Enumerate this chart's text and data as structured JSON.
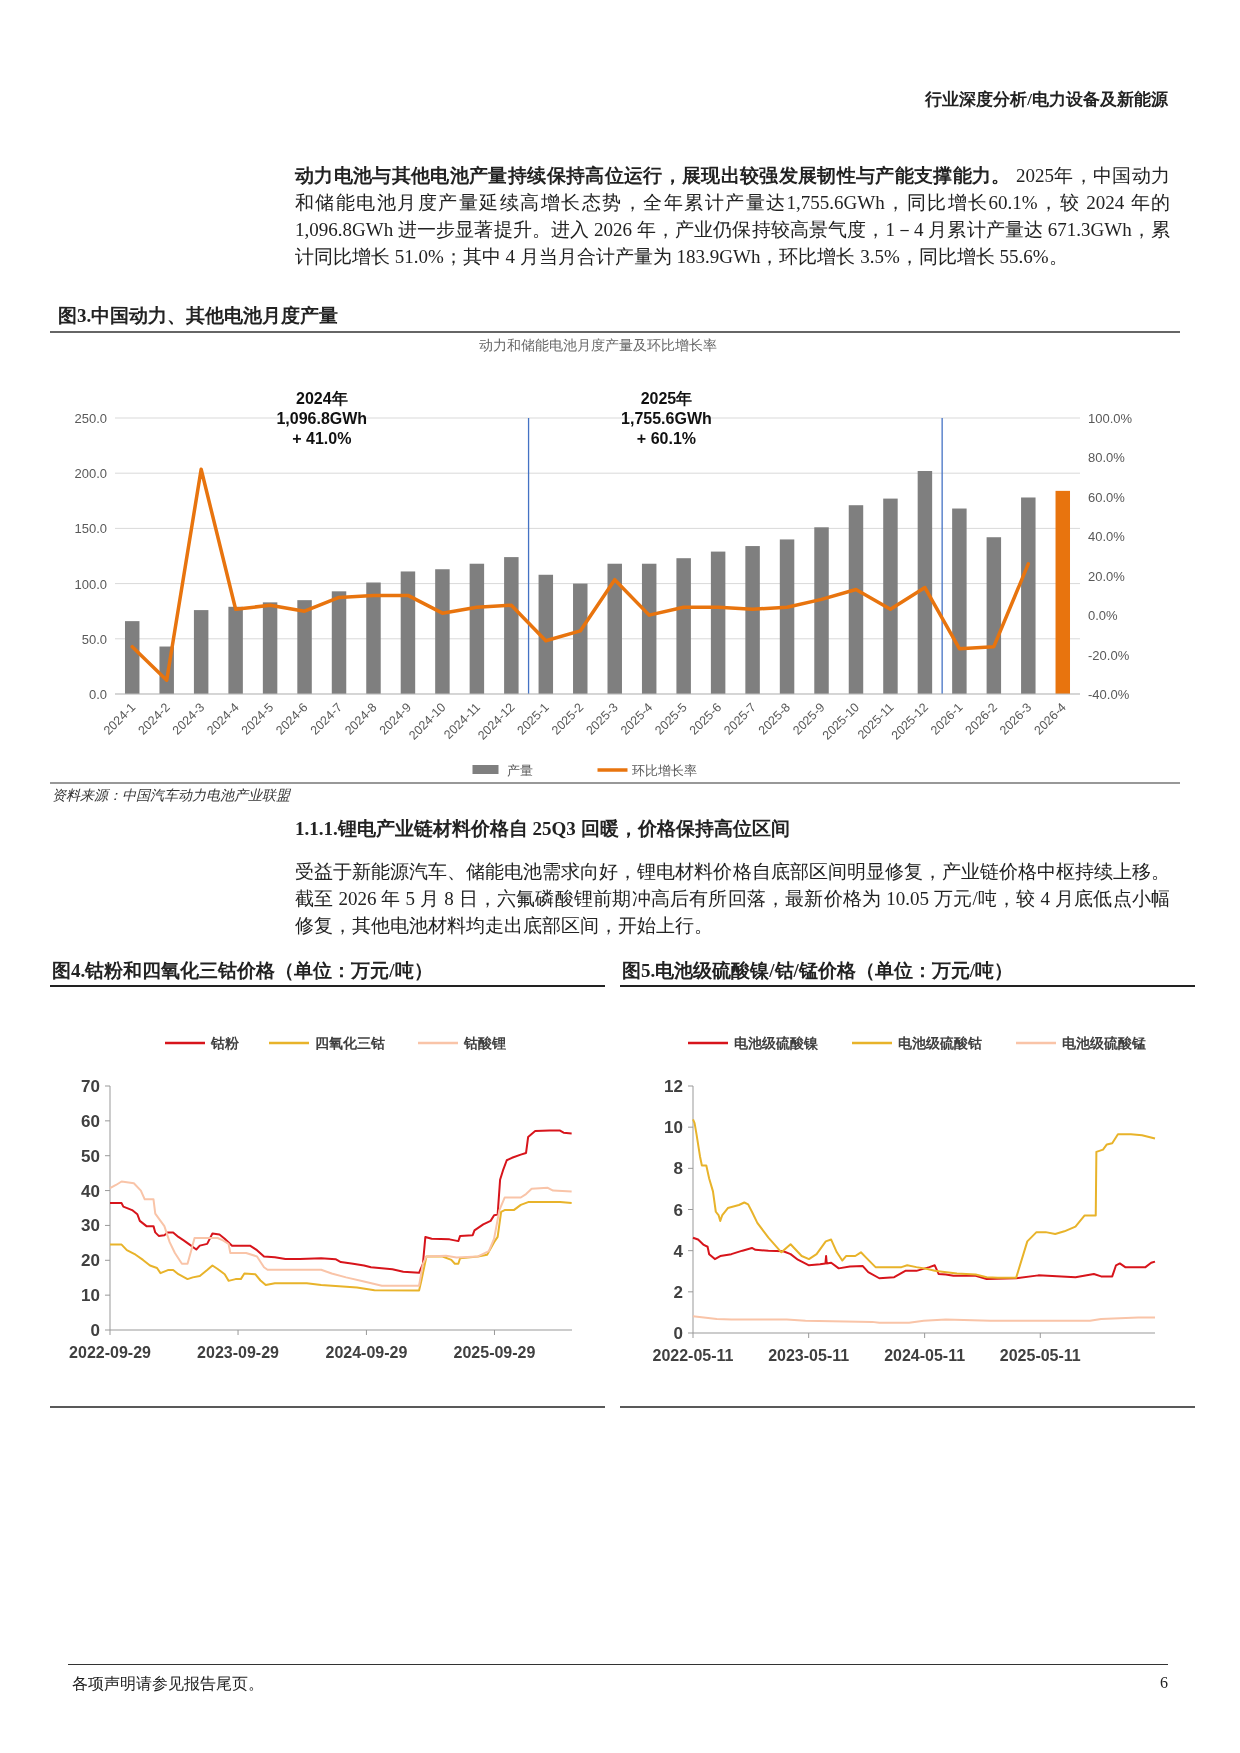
{
  "chart_data": [
    {
      "type": "other",
      "annotations": [
        "行业深度分析/电力设备及新能源",
        "**动力电池与其他电池产量持续保持高位运行，展现出较强发展韧性与产能支撑能力。** 2025年，中国动力和储能电池月度产量延续高增长态势，全年累计产量达1,755.6GWh，同比增长60.1%，较 2024 年的 1,096.8GWh 进一步显著提升。进入 2026 年，产业仍保持较高景气度，1－4 月累计产量达 671.3GWh，累计同比增长 51.0%；其中 4 月当月合计产量为 183.9GWh，环比增长 3.5%，同比增长 55.6%。"
      ]
    },
    {
      "type": "bar",
      "title": "图3.中国动力、其他电池月度产量",
      "subtitle": "动力和储能电池月度产量及环比增长率",
      "categories": [
        "2024-1",
        "2024-2",
        "2024-3",
        "2024-4",
        "2024-5",
        "2024-6",
        "2024-7",
        "2024-8",
        "2024-9",
        "2024-10",
        "2024-11",
        "2024-12",
        "2025-1",
        "2025-2",
        "2025-3",
        "2025-4",
        "2025-5",
        "2025-6",
        "2025-7",
        "2025-8",
        "2025-9",
        "2025-10",
        "2025-11",
        "2025-12",
        "2026-1",
        "2026-2",
        "2026-3",
        "2026-4"
      ],
      "series": [
        {
          "name": "产量",
          "type": "bar",
          "color": "#7f7f7f",
          "colors": [
            "#7f7f7f",
            "#7f7f7f",
            "#7f7f7f",
            "#7f7f7f",
            "#7f7f7f",
            "#7f7f7f",
            "#7f7f7f",
            "#7f7f7f",
            "#7f7f7f",
            "#7f7f7f",
            "#7f7f7f",
            "#7f7f7f",
            "#7f7f7f",
            "#7f7f7f",
            "#7f7f7f",
            "#7f7f7f",
            "#7f7f7f",
            "#7f7f7f",
            "#7f7f7f",
            "#7f7f7f",
            "#7f7f7f",
            "#7f7f7f",
            "#7f7f7f",
            "#7f7f7f",
            "#7f7f7f",
            "#7f7f7f",
            "#7f7f7f",
            "#e8740e"
          ],
          "values": [
            66,
            43,
            76,
            79,
            83,
            85,
            93,
            101,
            111,
            113,
            118,
            124,
            108,
            100,
            118,
            118,
            123,
            129,
            134,
            140,
            151,
            171,
            177,
            202,
            168,
            142,
            178,
            184
          ]
        },
        {
          "name": "环比增长率",
          "type": "line",
          "axis": "y2",
          "color": "#e8740e",
          "values": [
            -16,
            -33,
            74,
            3,
            5,
            2,
            9,
            10,
            10,
            1,
            4,
            5,
            -13,
            -8,
            18,
            0,
            4,
            4,
            3,
            4,
            8,
            13,
            3,
            14,
            -17,
            -16,
            26,
            null
          ]
        }
      ],
      "ylim": [
        0,
        250
      ],
      "yticks": [
        {
          "value": 0,
          "label": "0.0"
        },
        {
          "value": 50,
          "label": "50.0"
        },
        {
          "value": 100,
          "label": "100.0"
        },
        {
          "value": 150,
          "label": "150.0"
        },
        {
          "value": 200,
          "label": "200.0"
        },
        {
          "value": 250,
          "label": "250.0"
        }
      ],
      "y2lim": [
        -40,
        100
      ],
      "y2ticks": [
        {
          "value": -40,
          "label": "-40.0%"
        },
        {
          "value": -20,
          "label": "-20.0%"
        },
        {
          "value": 0,
          "label": "0.0%"
        },
        {
          "value": 20,
          "label": "20.0%"
        },
        {
          "value": 40,
          "label": "40.0%"
        },
        {
          "value": 60,
          "label": "60.0%"
        },
        {
          "value": 80,
          "label": "80.0%"
        },
        {
          "value": 100,
          "label": "100.0%"
        }
      ],
      "grid": "y",
      "legend": "bottom",
      "annotations": [
        "2024年\n1,096.8GWh\n+ 41.0%",
        "2025年\n1,755.6GWh\n+ 60.1%",
        "资料来源：中国汽车动力电池产业联盟"
      ]
    },
    {
      "type": "other",
      "title": "1.1.1.锂电产业链材料价格自 25Q3 回暖，价格保持高位区间",
      "annotations": [
        "受益于新能源汽车、储能电池需求向好，锂电材料价格自底部区间明显修复，产业链价格中枢持续上移。截至 2026 年 5 月 8 日，六氟磷酸锂前期冲高后有所回落，最新价格为 10.05 万元/吨，较 4 月底低点小幅修复，其他电池材料均走出底部区间，开始上行。"
      ]
    },
    {
      "type": "line",
      "title": "图4.钴粉和四氧化三钴价格（单位：万元/吨）",
      "legend": "top",
      "xlim": [
        "2022-09-29",
        "2026-05-08"
      ],
      "xticks": [
        "2022-09-29",
        "2023-09-29",
        "2024-09-29",
        "2025-09-29"
      ],
      "ylim": [
        0,
        70
      ],
      "yticks": [
        0,
        10,
        20,
        30,
        40,
        50,
        60,
        70
      ],
      "series": [
        {
          "name": "钴粉",
          "color": "#d7141b",
          "x": [
            "2022-09-29",
            "2022-11-01",
            "2022-11-06",
            "2022-12-01",
            "2022-12-16",
            "2022-12-23",
            "2023-01-11",
            "2023-01-31",
            "2023-02-05",
            "2023-02-15",
            "2023-03-03",
            "2023-03-13",
            "2023-03-28",
            "2023-04-12",
            "2023-04-27",
            "2023-05-18",
            "2023-06-02",
            "2023-06-12",
            "2023-07-03",
            "2023-07-18",
            "2023-08-07",
            "2023-08-22",
            "2023-09-12",
            "2023-10-12",
            "2023-11-02",
            "2023-11-22",
            "2023-12-12",
            "2024-01-12",
            "2024-02-11",
            "2024-03-23",
            "2024-05-23",
            "2024-07-03",
            "2024-07-18",
            "2024-08-22",
            "2024-09-22",
            "2024-10-12",
            "2024-12-12",
            "2025-01-12",
            "2025-02-26",
            "2025-03-09",
            "2025-03-16",
            "2025-04-03",
            "2025-05-24",
            "2025-06-18",
            "2025-06-23",
            "2025-07-29",
            "2025-08-03",
            "2025-08-28",
            "2025-09-18",
            "2025-09-28",
            "2025-10-08",
            "2025-10-15",
            "2025-10-23",
            "2025-11-03",
            "2025-11-18",
            "2025-12-13",
            "2025-12-28",
            "2026-01-03",
            "2026-01-23",
            "2026-03-05",
            "2026-04-04",
            "2026-04-14",
            "2026-05-07"
          ],
          "values": [
            36.4,
            36.4,
            35.4,
            34.4,
            33.2,
            31.3,
            29.8,
            29.8,
            28.0,
            27.0,
            27.2,
            28.0,
            28.0,
            26.7,
            25.7,
            24.2,
            23.1,
            24.2,
            24.7,
            27.7,
            27.4,
            26.2,
            24.2,
            24.2,
            24.2,
            22.9,
            21.1,
            20.9,
            20.4,
            20.4,
            20.6,
            20.3,
            19.5,
            19.0,
            18.5,
            18.0,
            17.4,
            16.7,
            16.4,
            19.0,
            26.7,
            26.2,
            26.0,
            25.5,
            27.0,
            27.2,
            28.6,
            30.3,
            31.3,
            32.9,
            33.1,
            43.1,
            45.7,
            48.7,
            49.4,
            50.3,
            50.8,
            55.4,
            57.1,
            57.2,
            57.2,
            56.6,
            56.4
          ]
        },
        {
          "name": "四氧化三钴",
          "color": "#e8b32a",
          "x": [
            "2022-09-29",
            "2022-11-01",
            "2022-11-16",
            "2022-12-11",
            "2023-01-01",
            "2023-01-21",
            "2023-02-10",
            "2023-02-20",
            "2023-03-13",
            "2023-03-28",
            "2023-04-12",
            "2023-05-08",
            "2023-05-23",
            "2023-06-12",
            "2023-07-03",
            "2023-07-18",
            "2023-08-02",
            "2023-08-22",
            "2023-09-02",
            "2023-09-22",
            "2023-10-07",
            "2023-10-17",
            "2023-11-17",
            "2023-12-02",
            "2023-12-17",
            "2024-01-12",
            "2024-04-12",
            "2024-05-23",
            "2024-09-02",
            "2024-10-22",
            "2025-02-26",
            "2025-03-04",
            "2025-03-19",
            "2025-05-04",
            "2025-05-29",
            "2025-06-08",
            "2025-06-18",
            "2025-06-23",
            "2025-08-13",
            "2025-09-08",
            "2025-09-28",
            "2025-10-08",
            "2025-10-18",
            "2025-10-28",
            "2025-11-23",
            "2025-12-13",
            "2026-01-03",
            "2026-04-04",
            "2026-05-07"
          ],
          "values": [
            24.5,
            24.5,
            22.9,
            21.6,
            20.1,
            18.5,
            17.8,
            16.3,
            17.2,
            17.2,
            16.0,
            14.6,
            15.1,
            15.5,
            17.2,
            18.5,
            17.5,
            16.0,
            14.1,
            14.6,
            14.6,
            16.2,
            16.0,
            14.2,
            12.9,
            13.4,
            13.4,
            12.9,
            12.2,
            11.4,
            11.3,
            13.9,
            21.1,
            21.1,
            20.1,
            19.0,
            19.0,
            20.6,
            21.1,
            21.6,
            25.2,
            26.7,
            33.9,
            34.4,
            34.4,
            35.9,
            36.7,
            36.7,
            36.4
          ]
        },
        {
          "name": "钴酸锂",
          "color": "#f9c4a8",
          "x": [
            "2022-09-29",
            "2022-10-16",
            "2022-11-01",
            "2022-12-06",
            "2022-12-26",
            "2023-01-06",
            "2023-01-31",
            "2023-02-05",
            "2023-02-20",
            "2023-03-03",
            "2023-03-18",
            "2023-04-02",
            "2023-04-22",
            "2023-05-08",
            "2023-05-18",
            "2023-05-28",
            "2023-08-02",
            "2023-08-17",
            "2023-09-02",
            "2023-09-07",
            "2023-10-22",
            "2023-11-22",
            "2023-12-12",
            "2023-12-22",
            "2024-05-23",
            "2024-06-22",
            "2024-08-02",
            "2024-09-22",
            "2024-11-12",
            "2025-02-26",
            "2025-03-09",
            "2025-03-19",
            "2025-05-14",
            "2025-06-13",
            "2025-08-13",
            "2025-09-13",
            "2025-09-28",
            "2025-10-13",
            "2025-10-28",
            "2025-12-13",
            "2025-12-28",
            "2026-01-13",
            "2026-02-28",
            "2026-03-15",
            "2026-05-07"
          ],
          "values": [
            40.7,
            41.6,
            42.6,
            42.1,
            40.0,
            37.5,
            37.5,
            33.4,
            31.3,
            29.8,
            25.2,
            22.1,
            19.0,
            19.0,
            22.6,
            26.4,
            26.4,
            25.7,
            24.7,
            22.1,
            22.1,
            21.1,
            18.0,
            17.3,
            17.3,
            16.2,
            15.1,
            13.9,
            12.7,
            12.7,
            19.0,
            21.1,
            21.3,
            20.8,
            21.1,
            22.6,
            26.2,
            34.4,
            38.0,
            38.0,
            39.0,
            40.5,
            40.8,
            40.0,
            39.7
          ]
        }
      ]
    },
    {
      "type": "line",
      "title": "图5.电池级硫酸镍/钴/锰价格（单位：万元/吨）",
      "legend": "top",
      "xlim": [
        "2022-05-11",
        "2026-05-08"
      ],
      "xticks": [
        "2022-05-11",
        "2023-05-11",
        "2024-05-11",
        "2025-05-11"
      ],
      "ylim": [
        0,
        12
      ],
      "yticks": [
        0,
        2,
        4,
        6,
        8,
        10,
        12
      ],
      "series": [
        {
          "name": "电池级硫酸镍",
          "color": "#d7141b",
          "x": [
            "2022-05-11",
            "2022-05-27",
            "2022-06-14",
            "2022-06-26",
            "2022-07-01",
            "2022-07-19",
            "2022-08-05",
            "2022-09-09",
            "2022-10-14",
            "2022-11-13",
            "2022-11-24",
            "2023-01-04",
            "2023-02-20",
            "2023-03-15",
            "2023-04-07",
            "2023-05-12",
            "2023-06-16",
            "2023-07-03",
            "2023-07-05",
            "2023-07-07",
            "2023-07-21",
            "2023-08-14",
            "2023-09-18",
            "2023-10-29",
            "2023-11-15",
            "2023-12-20",
            "2024-02-05",
            "2024-03-11",
            "2024-04-15",
            "2024-05-26",
            "2024-06-12",
            "2024-06-24",
            "2024-07-17",
            "2024-08-10",
            "2024-10-19",
            "2024-11-23",
            "2025-02-24",
            "2025-05-05",
            "2025-08-30",
            "2025-10-27",
            "2025-11-19",
            "2025-12-24",
            "2026-01-05",
            "2026-01-17",
            "2026-02-03",
            "2026-04-08",
            "2026-04-26",
            "2026-05-08"
          ],
          "values": [
            4.63,
            4.54,
            4.28,
            4.19,
            3.83,
            3.59,
            3.74,
            3.83,
            4.0,
            4.13,
            4.04,
            4.0,
            3.97,
            3.83,
            3.56,
            3.29,
            3.34,
            3.38,
            3.74,
            3.38,
            3.41,
            3.14,
            3.23,
            3.25,
            2.96,
            2.66,
            2.71,
            3.02,
            3.02,
            3.2,
            3.29,
            2.87,
            2.84,
            2.78,
            2.78,
            2.62,
            2.66,
            2.8,
            2.71,
            2.87,
            2.75,
            2.75,
            3.29,
            3.38,
            3.2,
            3.2,
            3.41,
            3.47
          ]
        },
        {
          "name": "电池级硫酸钴",
          "color": "#e8b32a",
          "x": [
            "2022-05-11",
            "2022-05-16",
            "2022-05-22",
            "2022-06-02",
            "2022-06-08",
            "2022-06-22",
            "2022-07-01",
            "2022-07-13",
            "2022-07-22",
            "2022-07-31",
            "2022-08-05",
            "2022-08-11",
            "2022-08-29",
            "2022-10-03",
            "2022-10-20",
            "2022-11-01",
            "2022-11-13",
            "2022-11-30",
            "2023-01-04",
            "2023-02-14",
            "2023-03-15",
            "2023-04-19",
            "2023-05-12",
            "2023-06-05",
            "2023-07-04",
            "2023-07-21",
            "2023-08-08",
            "2023-08-25",
            "2023-09-06",
            "2023-10-05",
            "2023-10-23",
            "2023-11-09",
            "2023-12-08",
            "2024-01-13",
            "2024-02-28",
            "2024-03-17",
            "2024-04-15",
            "2024-05-20",
            "2024-06-12",
            "2024-07-06",
            "2024-08-21",
            "2024-10-19",
            "2024-11-23",
            "2024-12-28",
            "2025-02-24",
            "2025-03-31",
            "2025-04-29",
            "2025-05-28",
            "2025-06-27",
            "2025-07-26",
            "2025-08-30",
            "2025-09-28",
            "2025-11-02",
            "2025-11-04",
            "2025-11-25",
            "2025-12-07",
            "2025-12-24",
            "2026-01-11",
            "2026-02-21",
            "2026-03-28",
            "2026-05-08"
          ],
          "values": [
            10.38,
            10.2,
            9.66,
            8.59,
            8.14,
            8.14,
            7.51,
            6.88,
            5.89,
            5.71,
            5.44,
            5.71,
            6.07,
            6.22,
            6.34,
            6.25,
            5.89,
            5.35,
            4.63,
            3.92,
            4.31,
            3.74,
            3.59,
            3.83,
            4.45,
            4.54,
            3.92,
            3.52,
            3.74,
            3.74,
            3.92,
            3.65,
            3.2,
            3.2,
            3.2,
            3.29,
            3.2,
            3.11,
            3.02,
            2.98,
            2.89,
            2.84,
            2.71,
            2.69,
            2.69,
            4.45,
            4.9,
            4.9,
            4.81,
            4.94,
            5.17,
            5.71,
            5.71,
            8.8,
            8.91,
            9.16,
            9.22,
            9.66,
            9.66,
            9.61,
            9.45
          ]
        },
        {
          "name": "电池级硫酸锰",
          "color": "#f9c4a8",
          "x": [
            "2022-05-11",
            "2022-07-25",
            "2022-09-09",
            "2023-03-03",
            "2023-05-01",
            "2023-11-27",
            "2023-12-20",
            "2024-03-23",
            "2024-05-08",
            "2024-07-17",
            "2024-12-04",
            "2025-10-15",
            "2025-11-19",
            "2026-03-16",
            "2026-05-08"
          ],
          "values": [
            0.81,
            0.68,
            0.65,
            0.65,
            0.59,
            0.54,
            0.5,
            0.5,
            0.59,
            0.65,
            0.59,
            0.59,
            0.68,
            0.75,
            0.75
          ]
        }
      ]
    },
    {
      "type": "other",
      "annotations": [
        "各项声明请参见报告尾页。",
        "6"
      ]
    }
  ]
}
